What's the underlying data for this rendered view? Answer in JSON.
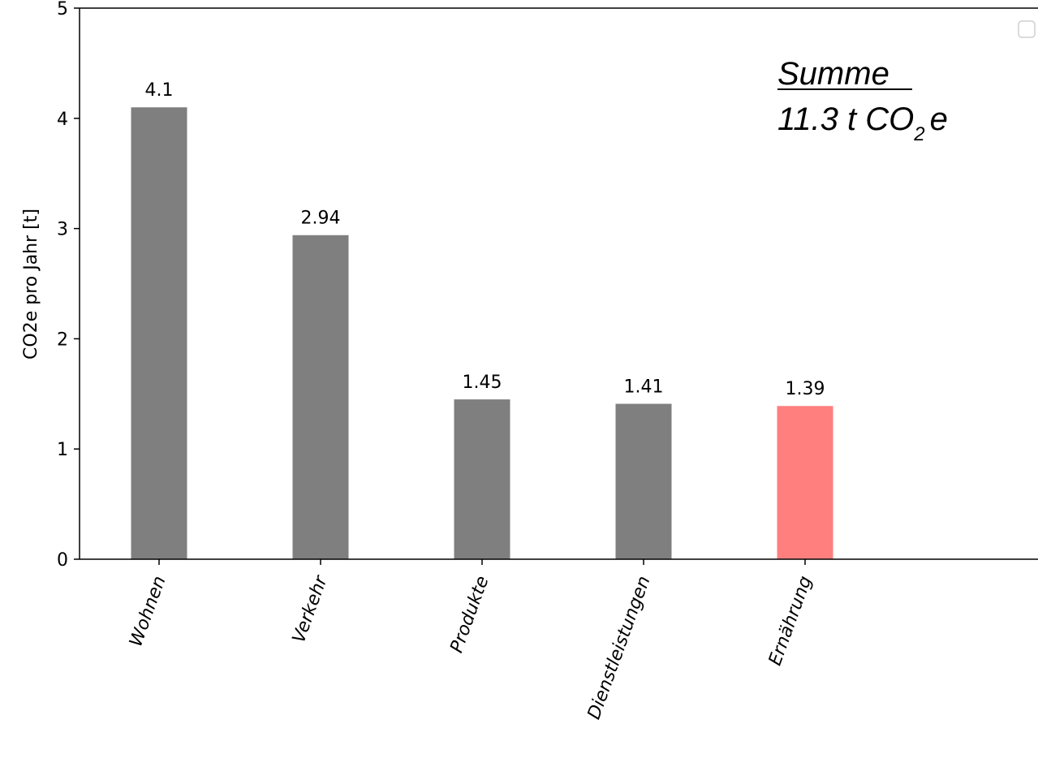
{
  "chart_data": {
    "type": "bar",
    "categories": [
      "Wohnen",
      "Verkehr",
      "Produkte",
      "Dienstleistungen",
      "Ernährung"
    ],
    "values": [
      4.1,
      2.94,
      1.45,
      1.41,
      1.39
    ],
    "value_labels": [
      "4.1",
      "2.94",
      "1.45",
      "1.41",
      "1.39"
    ],
    "bar_colors": [
      "#7f7f7f",
      "#7f7f7f",
      "#7f7f7f",
      "#7f7f7f",
      "#ff7f7f"
    ],
    "ylabel": "CO2e pro Jahr [t]",
    "xlabel": "",
    "ylim": [
      0,
      5
    ],
    "yticks": [
      0,
      1,
      2,
      3,
      4,
      5
    ],
    "grid": false,
    "legend": "top-right, empty"
  },
  "annotation": {
    "heading": "Summe",
    "total_prefix": "11.3 t CO",
    "total_subscript": "2",
    "total_suffix": "e"
  }
}
